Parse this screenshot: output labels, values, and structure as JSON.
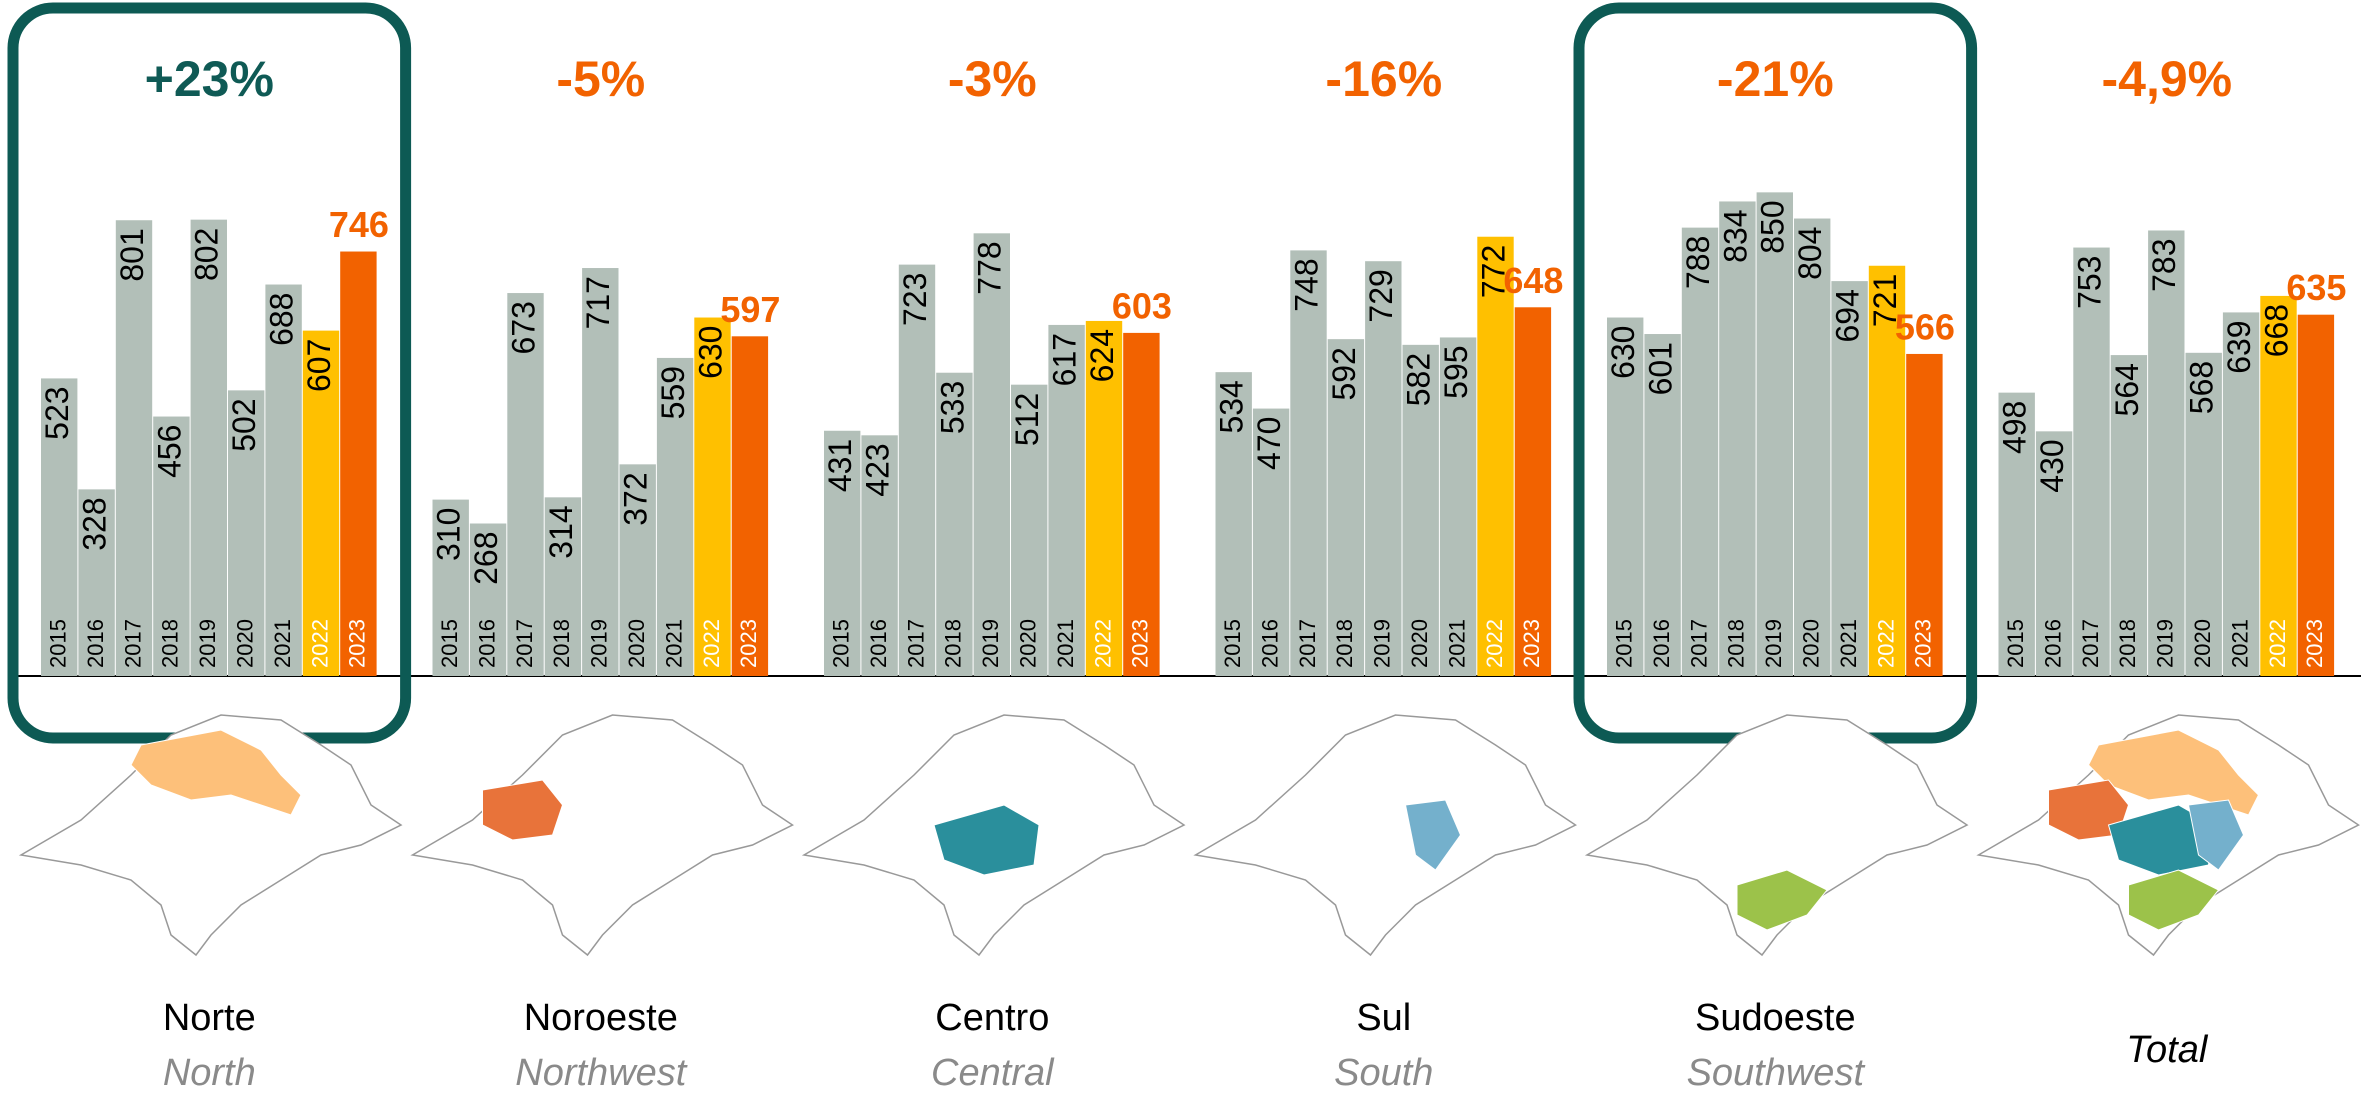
{
  "chart_data": [
    {
      "type": "bar",
      "title": "+23%",
      "title_color": "#0f5a55",
      "highlight": true,
      "region": "Norte",
      "region_en": "North",
      "categories": [
        "2015",
        "2016",
        "2017",
        "2018",
        "2019",
        "2020",
        "2021",
        "2022",
        "2023"
      ],
      "values": [
        523,
        328,
        801,
        456,
        802,
        502,
        688,
        607,
        746
      ],
      "colors": [
        "#b2bfb8",
        "#b2bfb8",
        "#b2bfb8",
        "#b2bfb8",
        "#b2bfb8",
        "#b2bfb8",
        "#b2bfb8",
        "#ffc000",
        "#f26200"
      ],
      "ylim": [
        0,
        1000
      ]
    },
    {
      "type": "bar",
      "title": "-5%",
      "title_color": "#f26200",
      "highlight": false,
      "region": "Noroeste",
      "region_en": "Northwest",
      "categories": [
        "2015",
        "2016",
        "2017",
        "2018",
        "2019",
        "2020",
        "2021",
        "2022",
        "2023"
      ],
      "values": [
        310,
        268,
        673,
        314,
        717,
        372,
        559,
        630,
        597
      ],
      "colors": [
        "#b2bfb8",
        "#b2bfb8",
        "#b2bfb8",
        "#b2bfb8",
        "#b2bfb8",
        "#b2bfb8",
        "#b2bfb8",
        "#ffc000",
        "#f26200"
      ],
      "ylim": [
        0,
        1000
      ]
    },
    {
      "type": "bar",
      "title": "-3%",
      "title_color": "#f26200",
      "highlight": false,
      "region": "Centro",
      "region_en": "Central",
      "categories": [
        "2015",
        "2016",
        "2017",
        "2018",
        "2019",
        "2020",
        "2021",
        "2022",
        "2023"
      ],
      "values": [
        431,
        423,
        723,
        533,
        778,
        512,
        617,
        624,
        603
      ],
      "colors": [
        "#b2bfb8",
        "#b2bfb8",
        "#b2bfb8",
        "#b2bfb8",
        "#b2bfb8",
        "#b2bfb8",
        "#b2bfb8",
        "#ffc000",
        "#f26200"
      ],
      "ylim": [
        0,
        1000
      ]
    },
    {
      "type": "bar",
      "title": "-16%",
      "title_color": "#f26200",
      "highlight": false,
      "region": "Sul",
      "region_en": "South",
      "categories": [
        "2015",
        "2016",
        "2017",
        "2018",
        "2019",
        "2020",
        "2021",
        "2022",
        "2023"
      ],
      "values": [
        534,
        470,
        748,
        592,
        729,
        582,
        595,
        772,
        648
      ],
      "colors": [
        "#b2bfb8",
        "#b2bfb8",
        "#b2bfb8",
        "#b2bfb8",
        "#b2bfb8",
        "#b2bfb8",
        "#b2bfb8",
        "#ffc000",
        "#f26200"
      ],
      "ylim": [
        0,
        1000
      ]
    },
    {
      "type": "bar",
      "title": "-21%",
      "title_color": "#f26200",
      "highlight": true,
      "region": "Sudoeste",
      "region_en": "Southwest",
      "categories": [
        "2015",
        "2016",
        "2017",
        "2018",
        "2019",
        "2020",
        "2021",
        "2022",
        "2023"
      ],
      "values": [
        630,
        601,
        788,
        834,
        850,
        804,
        694,
        721,
        566
      ],
      "colors": [
        "#b2bfb8",
        "#b2bfb8",
        "#b2bfb8",
        "#b2bfb8",
        "#b2bfb8",
        "#b2bfb8",
        "#b2bfb8",
        "#ffc000",
        "#f26200"
      ],
      "ylim": [
        0,
        1000
      ]
    },
    {
      "type": "bar",
      "title": "-4,9%",
      "title_color": "#f26200",
      "highlight": false,
      "region": "Total",
      "categories": [
        "2015",
        "2016",
        "2017",
        "2018",
        "2019",
        "2020",
        "2021",
        "2022",
        "2023"
      ],
      "values": [
        498,
        430,
        753,
        564,
        783,
        568,
        639,
        668,
        635
      ],
      "colors": [
        "#b2bfb8",
        "#b2bfb8",
        "#b2bfb8",
        "#b2bfb8",
        "#b2bfb8",
        "#b2bfb8",
        "#b2bfb8",
        "#ffc000",
        "#f26200"
      ],
      "ylim": [
        0,
        1000
      ]
    }
  ]
}
